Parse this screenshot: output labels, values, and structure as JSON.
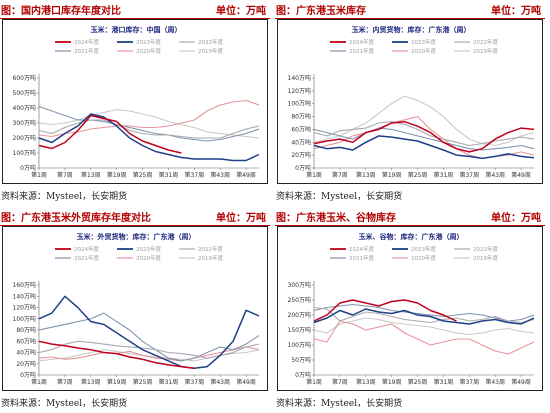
{
  "colors": {
    "2024": "#c0001c",
    "2023": "#1f3f87",
    "2022": "#a8a8b0",
    "2021": "#7f93ad",
    "2020": "#e8949c",
    "2019": "#c9c9c9",
    "header": "#b30000"
  },
  "legend_order": [
    "2024年度",
    "2023年度",
    "2022年度",
    "2021年度",
    "2020年度",
    "2019年度"
  ],
  "panels": [
    {
      "header_title": "图：国内港口库存年度对比",
      "header_unit": "单位：万吨",
      "source": "资料来源：Mysteel，长安期货",
      "chart_data": {
        "type": "line",
        "title": "玉米：港口库存：中国（周）",
        "ytick_labels": [
          "0万吨",
          "100万吨",
          "200万吨",
          "300万吨",
          "400万吨",
          "500万吨",
          "600万吨"
        ],
        "xtick_labels": [
          "第1周",
          "第7周",
          "第13周",
          "第19周",
          "第25周",
          "第31周",
          "第37周",
          "第43周",
          "第49周"
        ],
        "ylim": [
          0,
          600
        ],
        "x": [
          1,
          4,
          7,
          10,
          13,
          16,
          19,
          22,
          25,
          28,
          31,
          34,
          37,
          40,
          43,
          46,
          49,
          52
        ],
        "series": [
          {
            "name": "2024年度",
            "values": [
              150,
              130,
              170,
              250,
              350,
              330,
              310,
              230,
              180,
              150,
              120,
              100,
              null,
              null,
              null,
              null,
              null,
              null
            ]
          },
          {
            "name": "2023年度",
            "values": [
              200,
              170,
              230,
              280,
              360,
              340,
              280,
              200,
              150,
              110,
              90,
              70,
              60,
              60,
              60,
              50,
              50,
              90
            ]
          },
          {
            "name": "2022年度",
            "values": [
              250,
              230,
              270,
              300,
              320,
              320,
              290,
              250,
              230,
              220,
              220,
              210,
              200,
              200,
              200,
              230,
              260,
              280
            ]
          },
          {
            "name": "2021年度",
            "values": [
              410,
              380,
              350,
              320,
              320,
              310,
              290,
              270,
              250,
              230,
              220,
              200,
              190,
              180,
              190,
              210,
              230,
              260
            ]
          },
          {
            "name": "2020年度",
            "values": [
              220,
              210,
              230,
              240,
              260,
              270,
              280,
              280,
              270,
              270,
              280,
              300,
              320,
              380,
              420,
              440,
              450,
              420
            ]
          },
          {
            "name": "2019年度",
            "values": [
              300,
              290,
              300,
              320,
              350,
              370,
              390,
              380,
              360,
              340,
              310,
              290,
              270,
              240,
              230,
              220,
              210,
              200
            ]
          }
        ]
      }
    },
    {
      "header_title": "图：广东港玉米库存",
      "header_unit": "单位：万吨",
      "source": "资料来源：Mysteel，长安期货",
      "chart_data": {
        "type": "line",
        "title": "玉米：内贸货物：库存：广东港（周）",
        "ytick_labels": [
          "0万吨",
          "20万吨",
          "40万吨",
          "60万吨",
          "80万吨",
          "100万吨",
          "120万吨",
          "140万吨"
        ],
        "xtick_labels": [
          "第1周",
          "第7周",
          "第13周",
          "第19周",
          "第25周",
          "第31周",
          "第37周",
          "第43周",
          "第49周"
        ],
        "ylim": [
          0,
          140
        ],
        "x": [
          1,
          4,
          7,
          10,
          13,
          16,
          19,
          22,
          25,
          28,
          31,
          34,
          37,
          40,
          43,
          46,
          49,
          52
        ],
        "series": [
          {
            "name": "2024年度",
            "values": [
              38,
              42,
              45,
              40,
              55,
              60,
              70,
              72,
              65,
              55,
              40,
              30,
              25,
              30,
              45,
              55,
              62,
              60
            ]
          },
          {
            "name": "2023年度",
            "values": [
              35,
              30,
              32,
              28,
              40,
              50,
              48,
              45,
              42,
              35,
              28,
              20,
              18,
              15,
              18,
              22,
              18,
              16
            ]
          },
          {
            "name": "2022年度",
            "values": [
              55,
              50,
              58,
              60,
              62,
              70,
              72,
              68,
              60,
              50,
              45,
              40,
              35,
              38,
              42,
              45,
              48,
              45
            ]
          },
          {
            "name": "2021年度",
            "values": [
              60,
              55,
              50,
              45,
              55,
              62,
              60,
              55,
              50,
              45,
              40,
              35,
              30,
              28,
              30,
              32,
              35,
              30
            ]
          },
          {
            "name": "2020年度",
            "values": [
              30,
              35,
              40,
              50,
              55,
              62,
              70,
              75,
              80,
              60,
              45,
              30,
              20,
              15,
              18,
              20,
              25,
              20
            ]
          },
          {
            "name": "2019年度",
            "values": [
              40,
              45,
              50,
              60,
              70,
              85,
              100,
              112,
              105,
              95,
              80,
              60,
              45,
              38,
              35,
              40,
              50,
              55
            ]
          }
        ]
      }
    },
    {
      "header_title": "图：广东港玉米外贸库存年度对比",
      "header_unit": "单位：万吨",
      "source": "资料来源：Mysteel，长安期货",
      "chart_data": {
        "type": "line",
        "title": "玉米：外贸货物：库存：广东港（周）",
        "ytick_labels": [
          "0万吨",
          "20万吨",
          "40万吨",
          "60万吨",
          "80万吨",
          "100万吨",
          "120万吨",
          "140万吨",
          "160万吨"
        ],
        "xtick_labels": [
          "第1周",
          "第7周",
          "第13周",
          "第19周",
          "第25周",
          "第31周",
          "第37周",
          "第43周",
          "第49周"
        ],
        "ylim": [
          0,
          160
        ],
        "x": [
          1,
          4,
          7,
          10,
          13,
          16,
          19,
          22,
          25,
          28,
          31,
          34,
          37,
          40,
          43,
          46,
          49,
          52
        ],
        "series": [
          {
            "name": "2024年度",
            "values": [
              60,
              55,
              52,
              48,
              45,
              40,
              38,
              32,
              28,
              22,
              18,
              15,
              12,
              null,
              null,
              null,
              null,
              null
            ]
          },
          {
            "name": "2023年度",
            "values": [
              100,
              110,
              140,
              120,
              95,
              90,
              75,
              60,
              45,
              35,
              25,
              15,
              12,
              15,
              35,
              60,
              115,
              105
            ]
          },
          {
            "name": "2022年度",
            "values": [
              40,
              45,
              55,
              60,
              58,
              55,
              52,
              50,
              48,
              45,
              40,
              38,
              35,
              30,
              35,
              40,
              50,
              55
            ]
          },
          {
            "name": "2021年度",
            "values": [
              80,
              85,
              90,
              95,
              100,
              110,
              95,
              80,
              60,
              45,
              30,
              25,
              30,
              40,
              50,
              45,
              55,
              70
            ]
          },
          {
            "name": "2020年度",
            "values": [
              30,
              32,
              28,
              30,
              35,
              40,
              38,
              42,
              35,
              30,
              28,
              25,
              30,
              35,
              40,
              45,
              50,
              45
            ]
          },
          {
            "name": "2019年度",
            "values": [
              25,
              28,
              30,
              35,
              40,
              45,
              42,
              38,
              35,
              32,
              30,
              28,
              25,
              30,
              35,
              38,
              40,
              45
            ]
          }
        ]
      }
    },
    {
      "header_title": "图：广东港玉米、谷物库存",
      "header_unit": "单位：万吨",
      "source": "资料来源：Mysteel，长安期货",
      "chart_data": {
        "type": "line",
        "title": "玉米、谷物：库存：广东港（周）",
        "ytick_labels": [
          "0万吨",
          "50万吨",
          "100万吨",
          "150万吨",
          "200万吨",
          "250万吨",
          "300万吨"
        ],
        "xtick_labels": [
          "第1周",
          "第7周",
          "第13周",
          "第19周",
          "第25周",
          "第31周",
          "第37周",
          "第43周",
          "第49周"
        ],
        "ylim": [
          0,
          300
        ],
        "x": [
          1,
          4,
          7,
          10,
          13,
          16,
          19,
          22,
          25,
          28,
          31,
          34,
          37,
          40,
          43,
          46,
          49,
          52
        ],
        "series": [
          {
            "name": "2024年度",
            "values": [
              180,
              200,
              240,
              250,
              240,
              230,
              245,
              250,
              240,
              215,
              200,
              180,
              null,
              null,
              null,
              null,
              null,
              null
            ]
          },
          {
            "name": "2023年度",
            "values": [
              175,
              190,
              215,
              200,
              220,
              210,
              205,
              215,
              200,
              195,
              180,
              175,
              170,
              180,
              185,
              175,
              170,
              190
            ]
          },
          {
            "name": "2022年度",
            "values": [
              225,
              220,
              180,
              195,
              210,
              205,
              195,
              185,
              180,
              175,
              185,
              190,
              180,
              185,
              195,
              180,
              175,
              185
            ]
          },
          {
            "name": "2021年度",
            "values": [
              215,
              225,
              230,
              235,
              230,
              225,
              215,
              210,
              205,
              200,
              195,
              200,
              205,
              200,
              190,
              180,
              185,
              200
            ]
          },
          {
            "name": "2020年度",
            "values": [
              120,
              110,
              180,
              170,
              150,
              160,
              170,
              140,
              120,
              100,
              110,
              120,
              120,
              100,
              80,
              70,
              90,
              110
            ]
          },
          {
            "name": "2019年度",
            "values": [
              150,
              140,
              170,
              180,
              190,
              185,
              175,
              170,
              165,
              160,
              150,
              140,
              135,
              140,
              150,
              155,
              145,
              140
            ]
          }
        ]
      }
    }
  ]
}
